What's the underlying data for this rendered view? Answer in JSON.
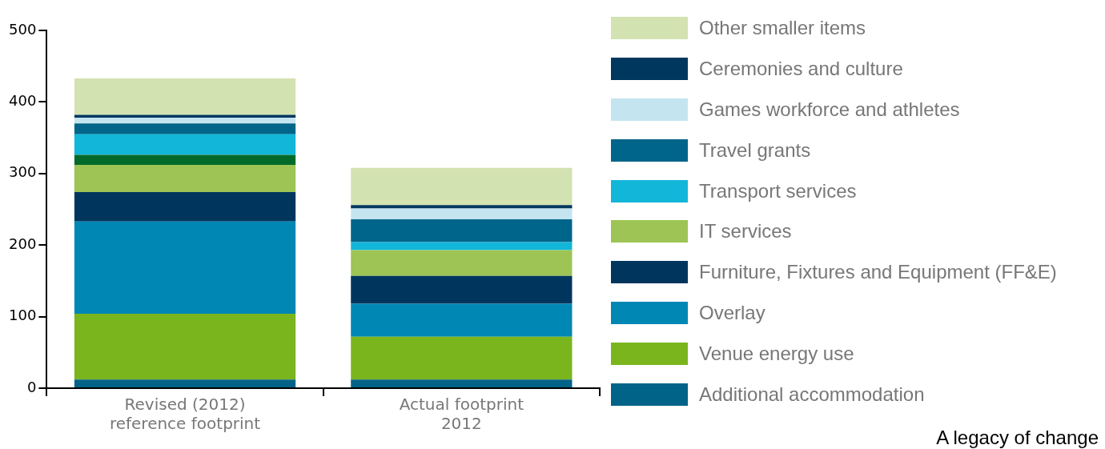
{
  "chart_data": {
    "type": "bar",
    "stacked": true,
    "categories": [
      "Revised (2012) reference footprint",
      "Actual footprint 2012"
    ],
    "series": [
      {
        "name": "Additional accommodation",
        "color": "#006387",
        "values": [
          12,
          12
        ]
      },
      {
        "name": "Venue energy use",
        "color": "#7ab51d",
        "values": [
          92,
          60
        ]
      },
      {
        "name": "Overlay",
        "color": "#0087b4",
        "values": [
          129,
          46
        ]
      },
      {
        "name": "Furniture, Fixtures and Equipment (FF&E)",
        "color": "#00365e",
        "values": [
          41,
          39
        ]
      },
      {
        "name": "IT services",
        "color": "#9dc454",
        "values": [
          38,
          36
        ]
      },
      {
        "color": "#006a2b",
        "values": [
          14,
          0
        ]
      },
      {
        "name": "Transport services",
        "color": "#12b6d8",
        "values": [
          29,
          11
        ]
      },
      {
        "name": "Travel grants",
        "color": "#00658a",
        "values": [
          15,
          32
        ]
      },
      {
        "name": "Games workforce and athletes",
        "color": "#c4e5f0",
        "values": [
          8,
          15
        ]
      },
      {
        "name": "Ceremonies and culture",
        "color": "#00375e",
        "values": [
          4,
          5
        ]
      },
      {
        "name": "Other smaller items",
        "color": "#d3e2b1",
        "values": [
          51,
          52
        ]
      }
    ],
    "ylim": [
      0,
      500
    ],
    "yticks": [
      0,
      100,
      200,
      300,
      400,
      500
    ],
    "grid": false,
    "legend": "right",
    "annotations": [
      "A legacy of change"
    ]
  }
}
